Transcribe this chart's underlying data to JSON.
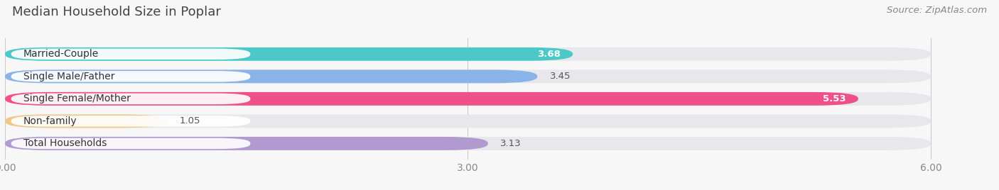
{
  "title": "Median Household Size in Poplar",
  "source": "Source: ZipAtlas.com",
  "categories": [
    "Married-Couple",
    "Single Male/Father",
    "Single Female/Mother",
    "Non-family",
    "Total Households"
  ],
  "values": [
    3.68,
    3.45,
    5.53,
    1.05,
    3.13
  ],
  "bar_colors": [
    "#4dc8c8",
    "#8ab4e8",
    "#f0508a",
    "#f0c888",
    "#b09ad0"
  ],
  "bar_bg_color": "#e8e8ec",
  "xlim": [
    0,
    6.3
  ],
  "x_max_display": 6.0,
  "xticks": [
    0.0,
    3.0,
    6.0
  ],
  "xtick_labels": [
    "0.00",
    "3.00",
    "6.00"
  ],
  "title_fontsize": 13,
  "source_fontsize": 9.5,
  "label_fontsize": 10,
  "value_fontsize": 9.5,
  "background_color": "#f7f7f7",
  "row_bg_color": "#efefef",
  "value_inside_color": "#ffffff",
  "value_outside_color": "#555555",
  "inside_threshold": 0.85
}
